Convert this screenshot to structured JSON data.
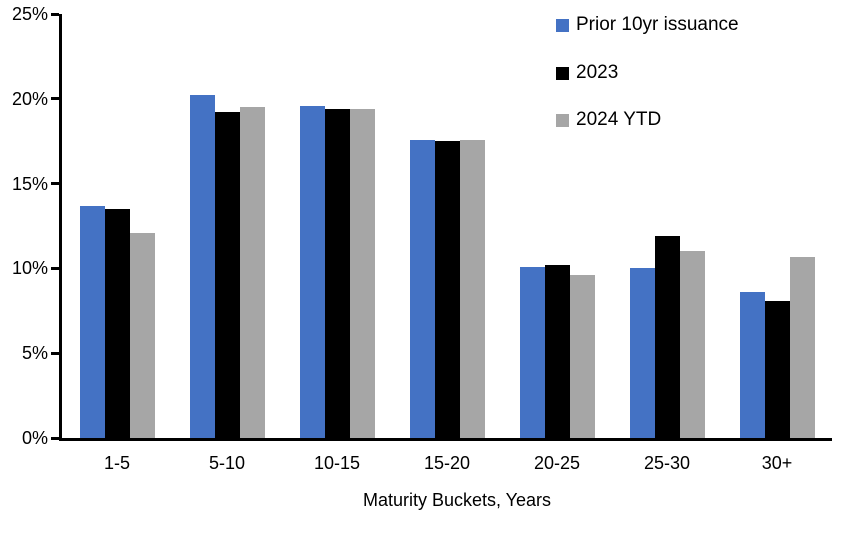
{
  "chart_data": {
    "type": "bar",
    "title": "",
    "xlabel": "Maturity Buckets, Years",
    "ylabel": "",
    "ylim": [
      0,
      25
    ],
    "grid": false,
    "legend_position": "top-right",
    "y_ticks": [
      {
        "value": 25,
        "label": "25%"
      },
      {
        "value": 20,
        "label": "20%"
      },
      {
        "value": 15,
        "label": "15%"
      },
      {
        "value": 10,
        "label": "10%"
      },
      {
        "value": 5,
        "label": "5%"
      },
      {
        "value": 0,
        "label": "0%"
      }
    ],
    "categories": [
      "1-5",
      "5-10",
      "10-15",
      "15-20",
      "20-25",
      "25-30",
      "30+"
    ],
    "series": [
      {
        "name": "Prior 10yr issuance",
        "color": "#4472C4",
        "values": [
          13.7,
          20.2,
          19.6,
          17.6,
          10.1,
          10.0,
          8.6
        ]
      },
      {
        "name": "2023",
        "color": "#000000",
        "values": [
          13.5,
          19.2,
          19.4,
          17.5,
          10.2,
          11.9,
          8.1
        ]
      },
      {
        "name": "2024 YTD",
        "color": "#A6A6A6",
        "values": [
          12.1,
          19.5,
          19.4,
          17.6,
          9.6,
          11.0,
          10.7
        ]
      }
    ]
  },
  "colors": {
    "axis": "#000000",
    "background": "#FFFFFF",
    "text": "#000000"
  }
}
